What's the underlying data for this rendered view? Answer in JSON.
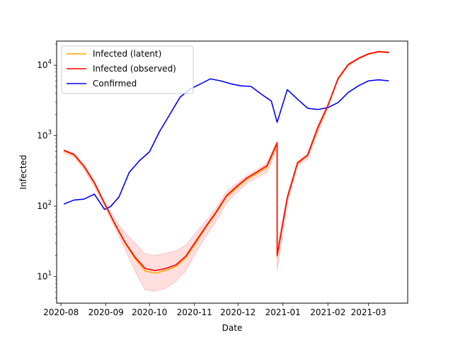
{
  "chart_data": {
    "type": "line",
    "xlabel": "Date",
    "ylabel": "Infected",
    "x_scale": "date",
    "y_scale": "log",
    "xlim": [
      "2020-07-29",
      "2021-03-28"
    ],
    "ylim": [
      4.2,
      22000
    ],
    "grid": false,
    "legend": {
      "placement": "top-left"
    },
    "x_ticks": [
      {
        "date": "2020-08-01",
        "label": "2020-08"
      },
      {
        "date": "2020-09-01",
        "label": "2020-09"
      },
      {
        "date": "2020-10-01",
        "label": "2020-10"
      },
      {
        "date": "2020-11-01",
        "label": "2020-11"
      },
      {
        "date": "2020-12-01",
        "label": "2020-12"
      },
      {
        "date": "2021-01-01",
        "label": "2021-01"
      },
      {
        "date": "2021-02-01",
        "label": "2021-02"
      },
      {
        "date": "2021-03-01",
        "label": "2021-03"
      }
    ],
    "y_ticks": [
      {
        "value": 10,
        "base": "10",
        "exp": "1"
      },
      {
        "value": 100,
        "base": "10",
        "exp": "2"
      },
      {
        "value": 1000,
        "base": "10",
        "exp": "3"
      },
      {
        "value": 10000,
        "base": "10",
        "exp": "4"
      }
    ],
    "band": {
      "color": "#ff0000",
      "opacity": 0.13,
      "x": [
        "2020-08-03",
        "2020-08-10",
        "2020-08-17",
        "2020-08-24",
        "2020-08-31",
        "2020-09-07",
        "2020-09-14",
        "2020-09-21",
        "2020-09-28",
        "2020-10-05",
        "2020-10-12",
        "2020-10-19",
        "2020-10-26",
        "2020-11-02",
        "2020-11-09",
        "2020-11-16",
        "2020-11-23",
        "2020-11-30",
        "2020-12-07",
        "2020-12-14",
        "2020-12-21",
        "2020-12-28",
        "2020-12-28",
        "2021-01-04",
        "2021-01-11",
        "2021-01-18",
        "2021-01-25",
        "2021-02-01",
        "2021-02-08",
        "2021-02-15",
        "2021-02-22",
        "2021-03-01",
        "2021-03-08",
        "2021-03-15"
      ],
      "low": [
        570,
        500,
        330,
        190,
        100,
        50,
        25,
        12,
        6.5,
        6.2,
        6.8,
        8.5,
        12,
        22,
        38,
        62,
        110,
        155,
        210,
        255,
        300,
        640,
        12,
        110,
        370,
        470,
        1100,
        2500,
        6100,
        9700,
        12100,
        14100,
        15200,
        14800
      ],
      "high": [
        640,
        560,
        390,
        230,
        115,
        65,
        42,
        30,
        21,
        20,
        21.5,
        23,
        28,
        42,
        62,
        95,
        160,
        210,
        270,
        330,
        410,
        860,
        25,
        145,
        430,
        570,
        1400,
        2800,
        6700,
        10600,
        12800,
        14800,
        15900,
        15500
      ]
    },
    "series": [
      {
        "name": "Infected (latent)",
        "color": "#ffa500",
        "x": [
          "2020-08-03",
          "2020-08-10",
          "2020-08-17",
          "2020-08-24",
          "2020-08-31",
          "2020-09-07",
          "2020-09-14",
          "2020-09-21",
          "2020-09-28",
          "2020-10-05",
          "2020-10-12",
          "2020-10-19",
          "2020-10-26",
          "2020-11-02",
          "2020-11-09",
          "2020-11-16",
          "2020-11-23",
          "2020-11-30",
          "2020-12-07",
          "2020-12-14",
          "2020-12-21",
          "2020-12-28",
          "2020-12-28",
          "2021-01-04",
          "2021-01-11",
          "2021-01-18",
          "2021-01-25",
          "2021-02-01",
          "2021-02-08",
          "2021-02-15",
          "2021-02-22",
          "2021-03-01",
          "2021-03-08",
          "2021-03-15"
        ],
        "y": [
          610,
          530,
          360,
          210,
          108,
          56,
          30,
          18,
          12,
          11.2,
          12.2,
          13.8,
          18.5,
          30,
          50,
          80,
          135,
          180,
          240,
          290,
          355,
          760,
          19,
          128,
          400,
          520,
          1250,
          2650,
          6400,
          10100,
          12400,
          14400,
          15500,
          15100
        ]
      },
      {
        "name": "Infected (observed)",
        "color": "#ff0000",
        "x": [
          "2020-08-03",
          "2020-08-10",
          "2020-08-17",
          "2020-08-24",
          "2020-08-31",
          "2020-09-07",
          "2020-09-14",
          "2020-09-21",
          "2020-09-28",
          "2020-10-05",
          "2020-10-12",
          "2020-10-19",
          "2020-10-26",
          "2020-11-02",
          "2020-11-09",
          "2020-11-16",
          "2020-11-23",
          "2020-11-30",
          "2020-12-07",
          "2020-12-14",
          "2020-12-21",
          "2020-12-28",
          "2020-12-28",
          "2021-01-04",
          "2021-01-11",
          "2021-01-18",
          "2021-01-25",
          "2021-02-01",
          "2021-02-08",
          "2021-02-15",
          "2021-02-22",
          "2021-03-01",
          "2021-03-08",
          "2021-03-15"
        ],
        "y": [
          620,
          540,
          365,
          215,
          110,
          57,
          31,
          19,
          13,
          12.2,
          13,
          14.6,
          19.5,
          32,
          52,
          83,
          140,
          190,
          250,
          305,
          375,
          790,
          20,
          132,
          410,
          530,
          1300,
          2700,
          6500,
          10200,
          12500,
          14500,
          15600,
          15200
        ]
      },
      {
        "name": "Confirmed",
        "color": "#0000ff",
        "x": [
          "2020-08-03",
          "2020-08-10",
          "2020-08-17",
          "2020-08-24",
          "2020-08-31",
          "2020-09-04",
          "2020-09-10",
          "2020-09-17",
          "2020-09-24",
          "2020-10-01",
          "2020-10-08",
          "2020-10-15",
          "2020-10-22",
          "2020-10-29",
          "2020-11-05",
          "2020-11-12",
          "2020-11-19",
          "2020-11-26",
          "2020-12-03",
          "2020-12-10",
          "2020-12-17",
          "2020-12-24",
          "2020-12-28",
          "2021-01-04",
          "2021-01-11",
          "2021-01-18",
          "2021-01-25",
          "2021-02-01",
          "2021-02-08",
          "2021-02-15",
          "2021-02-22",
          "2021-03-01",
          "2021-03-08",
          "2021-03-15"
        ],
        "y": [
          107,
          122,
          126,
          148,
          90,
          98,
          135,
          300,
          440,
          590,
          1150,
          2000,
          3500,
          4600,
          5400,
          6400,
          6000,
          5450,
          5100,
          5000,
          3900,
          3100,
          1550,
          4500,
          3300,
          2450,
          2350,
          2500,
          2950,
          4100,
          5100,
          6000,
          6200,
          6000
        ]
      }
    ]
  }
}
